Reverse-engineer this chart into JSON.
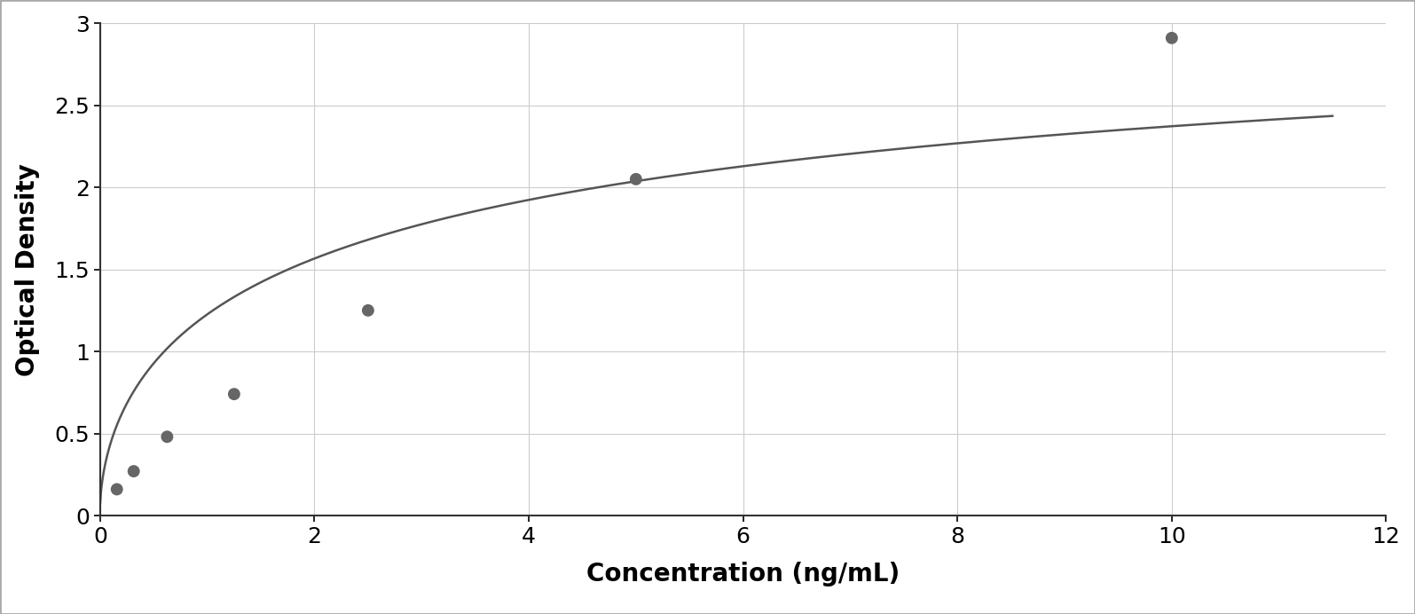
{
  "x_data": [
    0.156,
    0.313,
    0.625,
    1.25,
    2.5,
    5.0,
    10.0
  ],
  "y_data": [
    0.16,
    0.27,
    0.48,
    0.74,
    1.25,
    2.05,
    2.91
  ],
  "xlabel": "Concentration (ng/mL)",
  "ylabel": "Optical Density",
  "xlim": [
    0,
    12
  ],
  "ylim": [
    0,
    3.0
  ],
  "xticks": [
    0,
    2,
    4,
    6,
    8,
    10,
    12
  ],
  "yticks": [
    0,
    0.5,
    1.0,
    1.5,
    2.0,
    2.5,
    3.0
  ],
  "data_color": "#666666",
  "line_color": "#555555",
  "marker_size": 100,
  "line_width": 1.8,
  "xlabel_fontsize": 20,
  "ylabel_fontsize": 20,
  "tick_fontsize": 18,
  "grid_color": "#cccccc",
  "plot_bg": "#ffffff",
  "figure_bg": "#ffffff",
  "spine_color": "#333333",
  "border_color": "#aaaaaa"
}
